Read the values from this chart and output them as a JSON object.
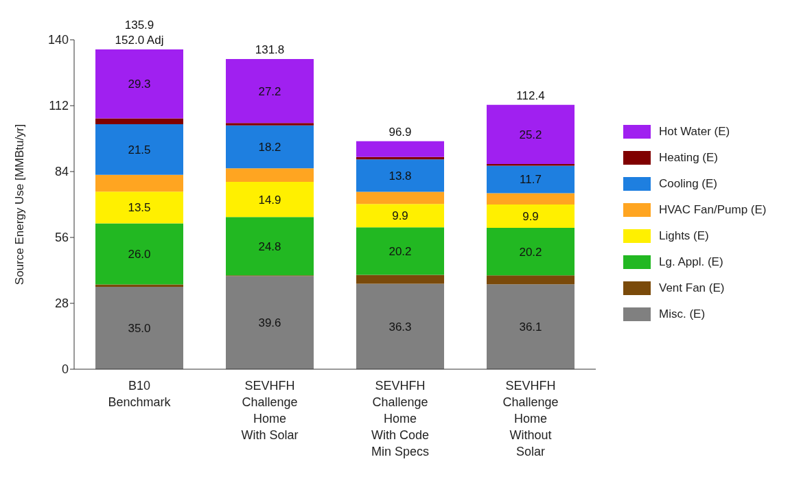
{
  "chart_data": {
    "type": "bar",
    "stacked": true,
    "ylabel": "Source Energy Use [MMBtu/yr]",
    "categories": [
      "B10\nBenchmark",
      "SEVHFH\nChallenge\nHome\nWith Solar",
      "SEVHFH\nChallenge\nHome\nWith Code\nMin Specs",
      "SEVHFH\nChallenge\nHome\nWithout\nSolar"
    ],
    "series": [
      {
        "name": "Misc. (E)",
        "color": "#808080",
        "values": [
          35.0,
          39.6,
          36.3,
          36.1
        ],
        "value_labels": [
          "35.0",
          "39.6",
          "36.3",
          "36.1"
        ]
      },
      {
        "name": "Vent Fan (E)",
        "color": "#7a4a0a",
        "values": [
          1.0,
          0.3,
          3.8,
          3.8
        ],
        "value_labels": [
          null,
          null,
          null,
          null
        ]
      },
      {
        "name": "Lg. Appl. (E)",
        "color": "#22b822",
        "values": [
          26.0,
          24.8,
          20.2,
          20.2
        ],
        "value_labels": [
          "26.0",
          "24.8",
          "20.2",
          "20.2"
        ]
      },
      {
        "name": "Lights (E)",
        "color": "#fff000",
        "values": [
          13.5,
          14.9,
          9.9,
          9.9
        ],
        "value_labels": [
          "13.5",
          "14.9",
          "9.9",
          "9.9"
        ]
      },
      {
        "name": "HVAC Fan/Pump (E)",
        "color": "#ffa521",
        "values": [
          7.1,
          5.8,
          5.2,
          4.8
        ],
        "value_labels": [
          null,
          null,
          null,
          null
        ]
      },
      {
        "name": "Cooling (E)",
        "color": "#1e7fe0",
        "values": [
          21.5,
          18.2,
          13.8,
          11.7
        ],
        "value_labels": [
          "21.5",
          "18.2",
          "13.8",
          "11.7"
        ]
      },
      {
        "name": "Heating (E)",
        "color": "#800000",
        "values": [
          2.5,
          1.0,
          1.0,
          0.7
        ],
        "value_labels": [
          null,
          null,
          null,
          null
        ]
      },
      {
        "name": "Hot Water (E)",
        "color": "#a020f0",
        "values": [
          29.3,
          27.2,
          6.7,
          25.2
        ],
        "value_labels": [
          "29.3",
          "27.2",
          null,
          "25.2"
        ]
      }
    ],
    "totals": [
      "135.9\n152.0 Adj",
      "131.8",
      "96.9",
      "112.4"
    ],
    "ylim": [
      0,
      140
    ],
    "yticks": [
      0,
      28,
      56,
      84,
      112,
      140
    ],
    "legend": "right"
  }
}
